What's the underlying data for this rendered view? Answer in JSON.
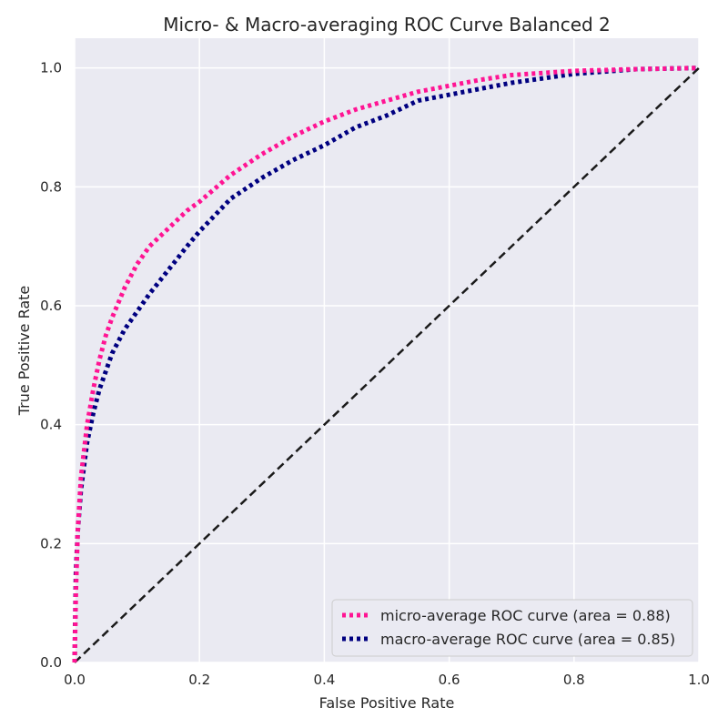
{
  "chart_data": {
    "type": "line",
    "title": "Micro- & Macro-averaging ROC Curve Balanced 2",
    "xlabel": "False Positive Rate",
    "ylabel": "True Positive Rate",
    "xlim": [
      0.0,
      1.0
    ],
    "ylim": [
      0.0,
      1.05
    ],
    "x_ticks": [
      "0.0",
      "0.2",
      "0.4",
      "0.6",
      "0.8",
      "1.0"
    ],
    "y_ticks": [
      "0.0",
      "0.2",
      "0.4",
      "0.6",
      "0.8",
      "1.0"
    ],
    "grid": true,
    "legend_position": "lower-right",
    "background_color": "#eaeaf2",
    "series": [
      {
        "name": "micro-average ROC curve (area = 0.88)",
        "color": "#ff1493",
        "style": "dotted",
        "x": [
          0,
          0.002,
          0.005,
          0.01,
          0.02,
          0.03,
          0.04,
          0.05,
          0.06,
          0.08,
          0.1,
          0.12,
          0.15,
          0.18,
          0.2,
          0.25,
          0.3,
          0.35,
          0.4,
          0.45,
          0.5,
          0.55,
          0.6,
          0.65,
          0.7,
          0.8,
          0.9,
          1.0
        ],
        "y": [
          0,
          0.12,
          0.22,
          0.31,
          0.4,
          0.46,
          0.51,
          0.55,
          0.58,
          0.63,
          0.67,
          0.7,
          0.73,
          0.76,
          0.775,
          0.82,
          0.855,
          0.885,
          0.91,
          0.93,
          0.945,
          0.96,
          0.97,
          0.98,
          0.988,
          0.995,
          0.998,
          1.0
        ]
      },
      {
        "name": "macro-average ROC curve (area = 0.85)",
        "color": "#000080",
        "style": "dotted",
        "x": [
          0,
          0.002,
          0.005,
          0.01,
          0.02,
          0.03,
          0.04,
          0.05,
          0.06,
          0.08,
          0.1,
          0.12,
          0.15,
          0.18,
          0.2,
          0.25,
          0.3,
          0.35,
          0.4,
          0.45,
          0.5,
          0.55,
          0.6,
          0.65,
          0.7,
          0.8,
          0.9,
          1.0
        ],
        "y": [
          0,
          0.15,
          0.22,
          0.29,
          0.37,
          0.42,
          0.46,
          0.49,
          0.52,
          0.56,
          0.59,
          0.62,
          0.66,
          0.7,
          0.725,
          0.78,
          0.815,
          0.845,
          0.87,
          0.9,
          0.92,
          0.945,
          0.955,
          0.965,
          0.975,
          0.99,
          0.998,
          1.0
        ]
      },
      {
        "name": "",
        "color": "#1a1a1a",
        "style": "dashed",
        "x": [
          0,
          1
        ],
        "y": [
          0,
          1
        ]
      }
    ]
  }
}
